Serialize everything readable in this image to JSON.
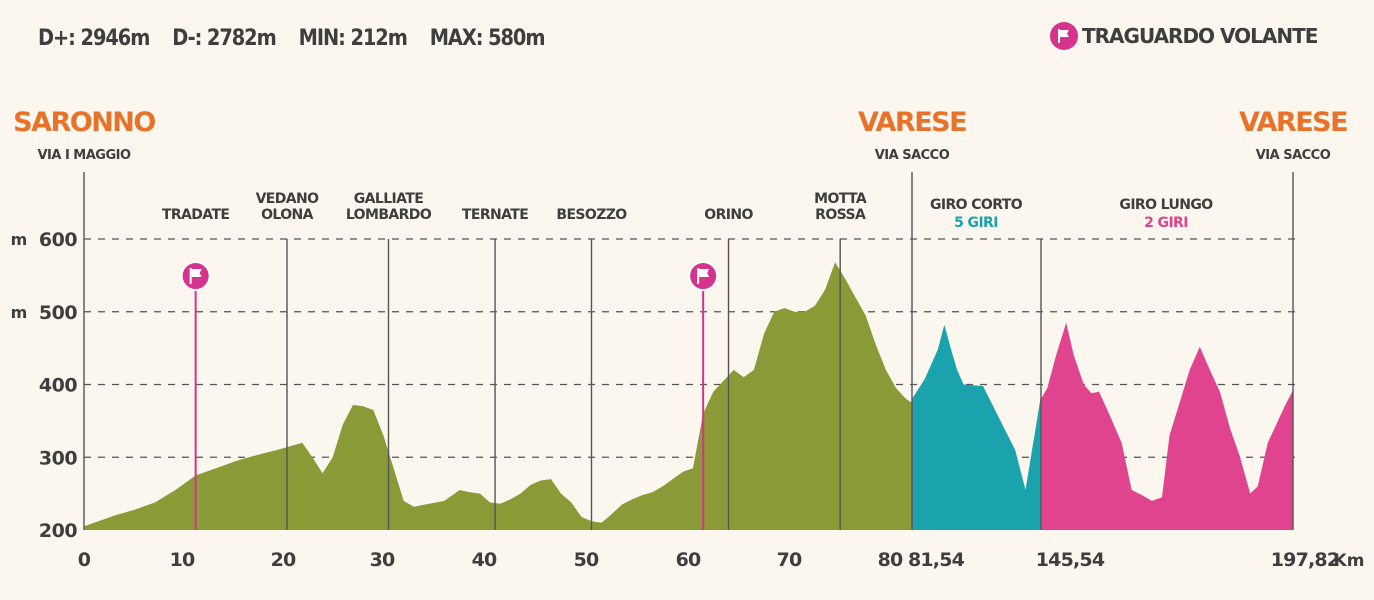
{
  "stats": {
    "d_plus": "D+: 2946m",
    "d_minus": "D-: 2782m",
    "min": "MIN: 212m",
    "max": "MAX: 580m"
  },
  "legend": {
    "label": "TRAGUARDO VOLANTE",
    "icon": "flag-icon",
    "color": "#d6338c"
  },
  "colors": {
    "main": "#8a9a36",
    "short_loop": "#1aa3ad",
    "long_loop": "#e0448f",
    "city": "#e8722a",
    "text": "#3e3e3e",
    "flag": "#d6338c"
  },
  "cities": [
    {
      "name": "SARONNO",
      "sub": "VIA I MAGGIO",
      "km": 0
    },
    {
      "name": "VARESE",
      "sub": "VIA SACCO",
      "km": 81.54
    },
    {
      "name": "VARESE",
      "sub": "VIA SACCO",
      "km": 197.82
    }
  ],
  "chart_data": {
    "type": "area",
    "title": "",
    "xlabel": "",
    "ylabel": "m",
    "y_unit_labels": [
      "m",
      "m"
    ],
    "x_unit": "Km",
    "ylim": [
      200,
      600
    ],
    "y_ticks": [
      200,
      300,
      400,
      500,
      600
    ],
    "x_ticks": [
      "0",
      "10",
      "20",
      "30",
      "40",
      "50",
      "60",
      "70",
      "80",
      "81,54",
      "145,54",
      "197,82"
    ],
    "grid": true,
    "towns": [
      {
        "label": [
          "TRADATE"
        ],
        "km": 11,
        "flag": true
      },
      {
        "label": [
          "VEDANO",
          "OLONA"
        ],
        "km": 20,
        "flag": false
      },
      {
        "label": [
          "GALLIATE",
          "LOMBARDO"
        ],
        "km": 30,
        "flag": false
      },
      {
        "label": [
          "TERNATE"
        ],
        "km": 40.5,
        "flag": false
      },
      {
        "label": [
          "BESOZZO"
        ],
        "km": 50,
        "flag": false
      },
      {
        "label": [
          "ORINO"
        ],
        "km": 63.5,
        "flag": false
      },
      {
        "label": [
          "MOTTA",
          "ROSSA"
        ],
        "km": 74.5,
        "flag": false
      }
    ],
    "sprint_kms": [
      11,
      61
    ],
    "loops": [
      {
        "name": "GIRO CORTO",
        "laps": "5 GIRI",
        "color": "#1aa3ad"
      },
      {
        "name": "GIRO LUNGO",
        "laps": "2 GIRI",
        "color": "#e0448f"
      }
    ],
    "series": [
      {
        "name": "",
        "segment": "main",
        "points": [
          [
            0,
            205
          ],
          [
            1,
            210
          ],
          [
            3,
            220
          ],
          [
            5,
            228
          ],
          [
            7,
            238
          ],
          [
            9,
            255
          ],
          [
            11,
            275
          ],
          [
            13,
            285
          ],
          [
            15,
            295
          ],
          [
            17,
            303
          ],
          [
            19,
            310
          ],
          [
            21,
            318
          ],
          [
            21.5,
            320
          ],
          [
            22.5,
            300
          ],
          [
            23.5,
            278
          ],
          [
            24.5,
            300
          ],
          [
            25.5,
            345
          ],
          [
            26.5,
            372
          ],
          [
            27.5,
            370
          ],
          [
            28.5,
            365
          ],
          [
            29.5,
            330
          ],
          [
            30.5,
            285
          ],
          [
            31.5,
            240
          ],
          [
            32.5,
            232
          ],
          [
            34,
            236
          ],
          [
            35.5,
            240
          ],
          [
            37,
            255
          ],
          [
            38,
            252
          ],
          [
            39,
            250
          ],
          [
            40,
            238
          ],
          [
            41,
            236
          ],
          [
            42,
            242
          ],
          [
            43,
            250
          ],
          [
            44,
            262
          ],
          [
            45,
            268
          ],
          [
            46,
            270
          ],
          [
            47,
            250
          ],
          [
            48,
            238
          ],
          [
            49,
            218
          ],
          [
            50,
            212
          ],
          [
            51,
            210
          ],
          [
            52,
            222
          ],
          [
            53,
            235
          ],
          [
            54,
            242
          ],
          [
            55,
            248
          ],
          [
            56,
            252
          ],
          [
            57,
            260
          ],
          [
            58,
            270
          ],
          [
            59,
            280
          ],
          [
            60,
            285
          ],
          [
            61,
            360
          ],
          [
            62,
            390
          ],
          [
            63,
            405
          ],
          [
            64,
            420
          ],
          [
            65,
            410
          ],
          [
            66,
            420
          ],
          [
            67,
            470
          ],
          [
            68,
            500
          ],
          [
            69,
            505
          ],
          [
            70,
            500
          ],
          [
            71,
            500
          ],
          [
            72,
            508
          ],
          [
            73,
            530
          ],
          [
            74,
            568
          ],
          [
            75,
            545
          ],
          [
            76,
            520
          ],
          [
            77,
            495
          ],
          [
            78,
            455
          ],
          [
            79,
            420
          ],
          [
            80,
            395
          ],
          [
            81,
            380
          ],
          [
            81.54,
            375
          ]
        ]
      },
      {
        "name": "",
        "segment": "giro-corto",
        "points": [
          [
            0,
            380
          ],
          [
            0.1,
            408
          ],
          [
            0.2,
            448
          ],
          [
            0.25,
            482
          ],
          [
            0.3,
            450
          ],
          [
            0.35,
            420
          ],
          [
            0.4,
            400
          ],
          [
            0.55,
            398
          ],
          [
            0.7,
            345
          ],
          [
            0.8,
            310
          ],
          [
            0.88,
            255
          ],
          [
            1.0,
            385
          ]
        ]
      },
      {
        "name": "",
        "segment": "giro-lungo",
        "points": [
          [
            0,
            380
          ],
          [
            0.025,
            395
          ],
          [
            0.06,
            440
          ],
          [
            0.1,
            485
          ],
          [
            0.13,
            440
          ],
          [
            0.17,
            400
          ],
          [
            0.2,
            388
          ],
          [
            0.23,
            390
          ],
          [
            0.27,
            360
          ],
          [
            0.32,
            320
          ],
          [
            0.36,
            255
          ],
          [
            0.4,
            248
          ],
          [
            0.44,
            240
          ],
          [
            0.48,
            245
          ],
          [
            0.51,
            330
          ],
          [
            0.55,
            375
          ],
          [
            0.59,
            420
          ],
          [
            0.63,
            452
          ],
          [
            0.67,
            420
          ],
          [
            0.71,
            390
          ],
          [
            0.75,
            340
          ],
          [
            0.79,
            300
          ],
          [
            0.83,
            250
          ],
          [
            0.86,
            260
          ],
          [
            0.9,
            320
          ],
          [
            0.94,
            350
          ],
          [
            0.97,
            372
          ],
          [
            1.0,
            392
          ]
        ]
      }
    ]
  }
}
